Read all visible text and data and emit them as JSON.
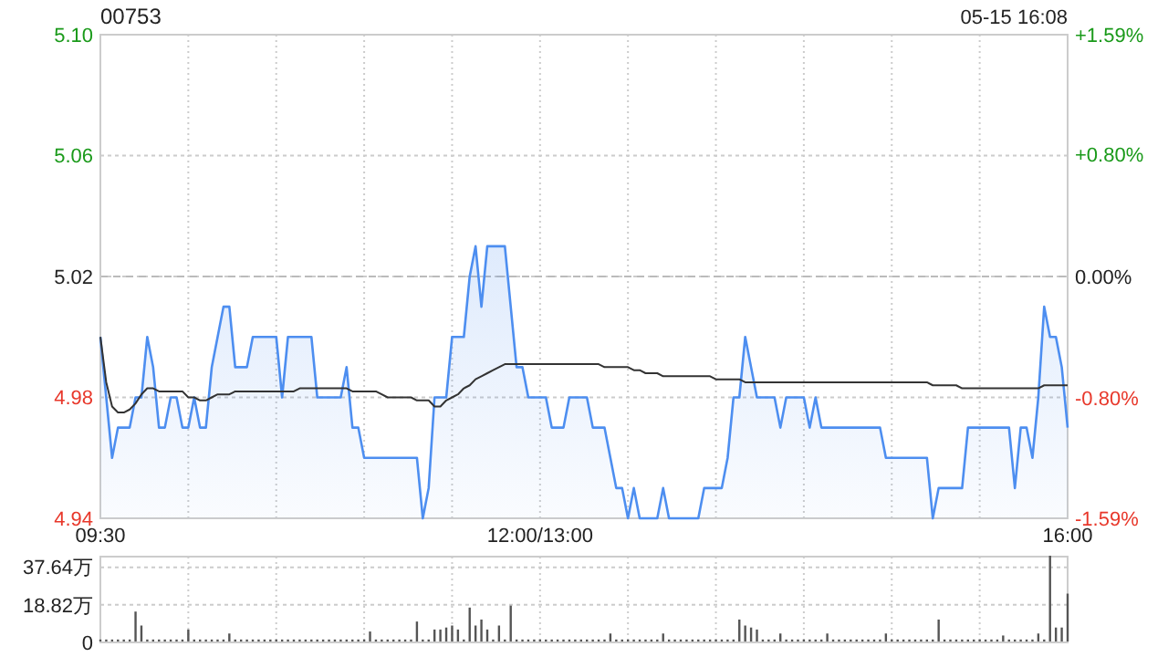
{
  "chart_data": [
    {
      "type": "area",
      "title": "00753",
      "annotations": [
        "05-15 16:08"
      ],
      "grid": true,
      "categories": [
        "09:30",
        null,
        null,
        null,
        null,
        null,
        null,
        null,
        null,
        null,
        null,
        null,
        null,
        null,
        null,
        null,
        null,
        null,
        null,
        null,
        null,
        null,
        null,
        null,
        null,
        null,
        null,
        null,
        null,
        null,
        null,
        null,
        null,
        null,
        null,
        null,
        null,
        null,
        null,
        null,
        null,
        null,
        null,
        null,
        null,
        null,
        null,
        null,
        null,
        null,
        null,
        null,
        null,
        null,
        null,
        null,
        null,
        null,
        null,
        null,
        null,
        null,
        null,
        null,
        null,
        null,
        null,
        null,
        null,
        null,
        null,
        null,
        null,
        null,
        null,
        "12:00/13:00",
        null,
        null,
        null,
        null,
        null,
        null,
        null,
        null,
        null,
        null,
        null,
        null,
        null,
        null,
        null,
        null,
        null,
        null,
        null,
        null,
        null,
        null,
        null,
        null,
        null,
        null,
        null,
        null,
        null,
        null,
        null,
        null,
        null,
        null,
        null,
        null,
        null,
        null,
        null,
        null,
        null,
        null,
        null,
        null,
        null,
        null,
        null,
        null,
        null,
        null,
        null,
        null,
        null,
        null,
        null,
        null,
        null,
        null,
        null,
        null,
        null,
        null,
        null,
        null,
        null,
        null,
        null,
        null,
        null,
        null,
        null,
        null,
        null,
        null,
        null,
        null,
        null,
        null,
        null,
        null,
        null,
        null,
        null,
        null,
        null,
        null,
        null,
        null,
        null,
        "16:00"
      ],
      "ylim": [
        4.94,
        5.1
      ],
      "yticks": [
        4.94,
        4.98,
        5.02,
        5.06,
        {
          "value": 5.1,
          "label": "5.10"
        }
      ],
      "y2lim": [
        -1.59,
        1.59
      ],
      "y2ticks": [
        {
          "value": -1.59,
          "label": "-1.59%"
        },
        {
          "value": -0.8,
          "label": "-0.80%"
        },
        {
          "value": 0,
          "label": "0.00%"
        },
        {
          "value": 0.8,
          "label": "+0.80%"
        },
        {
          "value": 1.59,
          "label": "+1.59%"
        }
      ],
      "ref_lines": [
        {
          "axis": "y",
          "value": 5.02,
          "line_style": "dashed",
          "color": "#bbbbbb"
        }
      ],
      "series": [
        {
          "type": "area",
          "color": "#4d8ef0",
          "values": [
            5.0,
            4.98,
            4.96,
            4.97,
            4.97,
            4.97,
            4.98,
            4.98,
            5.0,
            4.99,
            4.97,
            4.97,
            4.98,
            4.98,
            4.97,
            4.97,
            4.98,
            4.97,
            4.97,
            4.99,
            5.0,
            5.01,
            5.01,
            4.99,
            4.99,
            4.99,
            5.0,
            5.0,
            5.0,
            5.0,
            5.0,
            4.98,
            5.0,
            5.0,
            5.0,
            5.0,
            5.0,
            4.98,
            4.98,
            4.98,
            4.98,
            4.98,
            4.99,
            4.97,
            4.97,
            4.96,
            4.96,
            4.96,
            4.96,
            4.96,
            4.96,
            4.96,
            4.96,
            4.96,
            4.96,
            4.94,
            4.95,
            4.98,
            4.98,
            4.98,
            5.0,
            5.0,
            5.0,
            5.02,
            5.03,
            5.01,
            5.03,
            5.03,
            5.03,
            5.03,
            5.01,
            4.99,
            4.99,
            4.98,
            4.98,
            4.98,
            4.98,
            4.97,
            4.97,
            4.97,
            4.98,
            4.98,
            4.98,
            4.98,
            4.97,
            4.97,
            4.97,
            4.96,
            4.95,
            4.95,
            4.94,
            4.95,
            4.94,
            4.94,
            4.94,
            4.94,
            4.95,
            4.94,
            4.94,
            4.94,
            4.94,
            4.94,
            4.94,
            4.95,
            4.95,
            4.95,
            4.95,
            4.96,
            4.98,
            4.98,
            5.0,
            4.99,
            4.98,
            4.98,
            4.98,
            4.98,
            4.97,
            4.98,
            4.98,
            4.98,
            4.98,
            4.97,
            4.98,
            4.97,
            4.97,
            4.97,
            4.97,
            4.97,
            4.97,
            4.97,
            4.97,
            4.97,
            4.97,
            4.97,
            4.96,
            4.96,
            4.96,
            4.96,
            4.96,
            4.96,
            4.96,
            4.96,
            4.94,
            4.95,
            4.95,
            4.95,
            4.95,
            4.95,
            4.97,
            4.97,
            4.97,
            4.97,
            4.97,
            4.97,
            4.97,
            4.97,
            4.95,
            4.97,
            4.97,
            4.96,
            4.98,
            5.01,
            5.0,
            5.0,
            4.99,
            4.97
          ]
        },
        {
          "type": "line",
          "color": "#333333",
          "values": [
            5.0,
            4.985,
            4.977,
            4.975,
            4.975,
            4.976,
            4.978,
            4.981,
            4.983,
            4.983,
            4.982,
            4.982,
            4.982,
            4.982,
            4.982,
            4.98,
            4.98,
            4.979,
            4.979,
            4.98,
            4.981,
            4.981,
            4.981,
            4.982,
            4.982,
            4.982,
            4.982,
            4.982,
            4.982,
            4.982,
            4.982,
            4.982,
            4.982,
            4.982,
            4.983,
            4.983,
            4.983,
            4.983,
            4.983,
            4.983,
            4.983,
            4.983,
            4.983,
            4.982,
            4.982,
            4.982,
            4.982,
            4.982,
            4.981,
            4.98,
            4.98,
            4.98,
            4.98,
            4.98,
            4.979,
            4.979,
            4.979,
            4.977,
            4.977,
            4.979,
            4.98,
            4.981,
            4.983,
            4.984,
            4.986,
            4.987,
            4.988,
            4.989,
            4.99,
            4.991,
            4.991,
            4.991,
            4.991,
            4.991,
            4.991,
            4.991,
            4.991,
            4.991,
            4.991,
            4.991,
            4.991,
            4.991,
            4.991,
            4.991,
            4.991,
            4.991,
            4.99,
            4.99,
            4.99,
            4.99,
            4.99,
            4.989,
            4.989,
            4.988,
            4.988,
            4.988,
            4.987,
            4.987,
            4.987,
            4.987,
            4.987,
            4.987,
            4.987,
            4.987,
            4.987,
            4.986,
            4.986,
            4.986,
            4.986,
            4.986,
            4.985,
            4.985,
            4.985,
            4.985,
            4.985,
            4.985,
            4.985,
            4.985,
            4.985,
            4.985,
            4.985,
            4.985,
            4.985,
            4.985,
            4.985,
            4.985,
            4.985,
            4.985,
            4.985,
            4.985,
            4.985,
            4.985,
            4.985,
            4.985,
            4.985,
            4.985,
            4.985,
            4.985,
            4.985,
            4.985,
            4.985,
            4.985,
            4.984,
            4.984,
            4.984,
            4.984,
            4.984,
            4.983,
            4.983,
            4.983,
            4.983,
            4.983,
            4.983,
            4.983,
            4.983,
            4.983,
            4.983,
            4.983,
            4.983,
            4.983,
            4.983,
            4.984,
            4.984,
            4.984,
            4.984,
            4.984
          ]
        }
      ]
    },
    {
      "type": "bar",
      "grid": true,
      "color": "#555555",
      "categories": [
        null,
        null,
        null,
        null,
        null,
        null,
        null,
        null,
        null,
        null,
        null,
        null,
        null,
        null,
        null,
        null,
        null,
        null,
        null,
        null,
        null,
        null,
        null,
        null,
        null,
        null,
        null,
        null,
        null,
        null,
        null,
        null,
        null,
        null,
        null,
        null,
        null,
        null,
        null,
        null,
        null,
        null,
        null,
        null,
        null,
        null,
        null,
        null,
        null,
        null,
        null,
        null,
        null,
        null,
        null,
        null,
        null,
        null,
        null,
        null,
        null,
        null,
        null,
        null,
        null,
        null,
        null,
        null,
        null,
        null,
        null,
        null,
        null,
        null,
        null,
        null,
        null,
        null,
        null,
        null,
        null,
        null,
        null,
        null,
        null,
        null,
        null,
        null,
        null,
        null,
        null,
        null,
        null,
        null,
        null,
        null,
        null,
        null,
        null,
        null,
        null,
        null,
        null,
        null,
        null,
        null,
        null,
        null,
        null,
        null,
        null,
        null,
        null,
        null,
        null,
        null,
        null,
        null,
        null,
        null,
        null,
        null,
        null,
        null,
        null,
        null,
        null,
        null,
        null,
        null,
        null,
        null,
        null,
        null,
        null,
        null,
        null,
        null,
        null,
        null,
        null,
        null,
        null,
        null,
        null,
        null,
        null,
        null,
        null,
        null,
        null,
        null,
        null,
        null,
        null,
        null,
        null,
        null,
        null,
        null,
        null,
        null,
        null,
        null,
        null,
        null
      ],
      "ylim": [
        0,
        43
      ],
      "yticks": [
        0,
        {
          "value": 18.82,
          "label": "18.82万"
        },
        {
          "value": 37.64,
          "label": "37.64万"
        }
      ],
      "values": [
        1,
        1,
        1,
        1,
        1,
        1,
        15,
        8,
        1,
        1,
        1,
        1,
        1,
        1,
        1,
        6,
        1,
        1,
        1,
        1,
        1,
        1,
        4,
        1,
        1,
        1,
        1,
        1,
        1,
        1,
        1,
        1,
        1,
        1,
        1,
        1,
        1,
        1,
        1,
        1,
        1,
        1,
        1,
        1,
        1,
        1,
        5,
        1,
        1,
        1,
        1,
        1,
        1,
        1,
        10,
        1,
        1,
        6,
        6,
        7,
        8,
        6,
        1,
        17,
        8,
        11,
        6,
        1,
        8,
        1,
        18,
        1,
        1,
        1,
        1,
        1,
        1,
        1,
        1,
        1,
        1,
        1,
        1,
        1,
        1,
        1,
        1,
        4,
        1,
        1,
        1,
        1,
        1,
        1,
        1,
        1,
        4,
        1,
        1,
        1,
        1,
        1,
        1,
        1,
        1,
        1,
        1,
        1,
        1,
        11,
        8,
        7,
        6,
        1,
        1,
        1,
        4,
        1,
        1,
        1,
        1,
        1,
        1,
        1,
        4,
        1,
        1,
        1,
        1,
        1,
        1,
        1,
        1,
        1,
        4,
        1,
        1,
        1,
        1,
        1,
        1,
        1,
        1,
        11,
        1,
        1,
        1,
        1,
        1,
        1,
        1,
        1,
        1,
        1,
        3,
        1,
        1,
        1,
        1,
        1,
        4,
        1,
        43,
        7,
        7,
        24
      ]
    }
  ]
}
